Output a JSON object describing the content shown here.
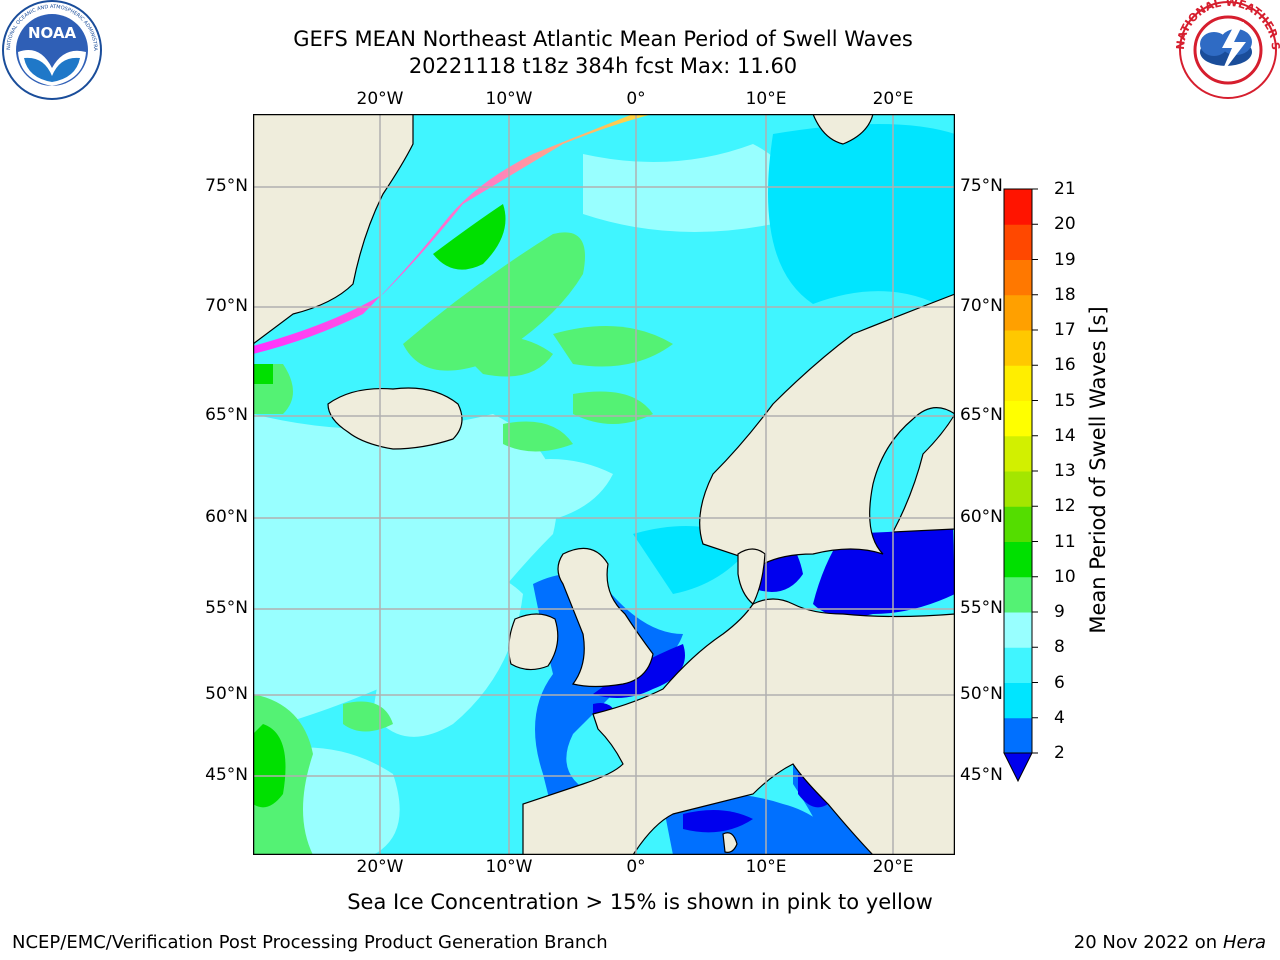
{
  "header": {
    "title_line1": "GEFS MEAN Northeast Atlantic Mean Period of Swell Waves",
    "title_line2": "20221118 t18z 384h fcst   Max: 11.60"
  },
  "logos": {
    "left": {
      "name": "noaa-logo",
      "text": "NOAA",
      "ring_text": "NATIONAL OCEANIC AND ATMOSPHERIC ADMINISTRATION · U.S. DEPARTMENT OF COMMERCE"
    },
    "right": {
      "name": "nws-logo",
      "ring_text": "NATIONAL WEATHER SERVICE"
    }
  },
  "map": {
    "lon_ticks": [
      "20°W",
      "10°W",
      "0°",
      "10°E",
      "20°E"
    ],
    "lat_ticks": [
      "75°N",
      "70°N",
      "65°N",
      "60°N",
      "55°N",
      "50°N",
      "45°N"
    ],
    "colors": {
      "land": "#efeddc",
      "grid": "#b0b0b0",
      "ice_pink": "#ff30ff",
      "ice_yellow": "#ffe030"
    }
  },
  "colorbar": {
    "label": "Mean Period of Swell Waves [s]",
    "ticks": [
      "2",
      "4",
      "6",
      "8",
      "9",
      "10",
      "11",
      "12",
      "13",
      "14",
      "15",
      "16",
      "17",
      "18",
      "19",
      "20",
      "21"
    ],
    "colors": [
      "#0070ff",
      "#00e5ff",
      "#40f5ff",
      "#98ffff",
      "#54f274",
      "#00e000",
      "#54dd00",
      "#a4e600",
      "#d2f000",
      "#ffff00",
      "#ffee00",
      "#ffc800",
      "#ffa000",
      "#ff7800",
      "#ff4800",
      "#ff1400"
    ],
    "extend_color": "#0000ee"
  },
  "footer": {
    "note": "Sea Ice Concentration > 15% is shown in pink to yellow",
    "credit": "NCEP/EMC/Verification Post Processing Product Generation Branch",
    "date": "20 Nov 2022 on",
    "host": "Hera"
  }
}
